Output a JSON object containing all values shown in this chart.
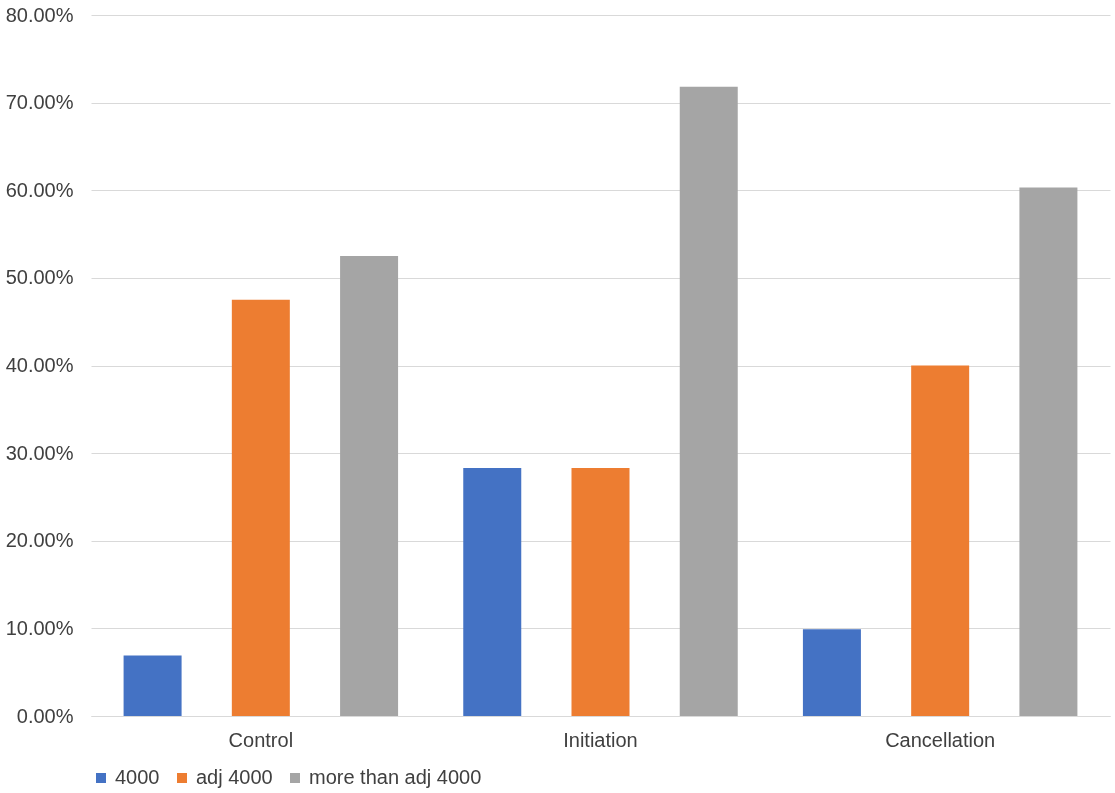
{
  "chart_data": {
    "type": "bar",
    "categories": [
      "Control",
      "Initiation",
      "Cancellation"
    ],
    "series": [
      {
        "name": "4000",
        "color": "#4472c4",
        "values": [
          6.9,
          28.3,
          9.9
        ]
      },
      {
        "name": "adj 4000",
        "color": "#ed7d31",
        "values": [
          47.5,
          28.3,
          40.0
        ]
      },
      {
        "name": "more than adj 4000",
        "color": "#a5a5a5",
        "values": [
          52.5,
          71.8,
          60.3
        ]
      }
    ],
    "ylim": [
      0,
      80
    ],
    "yticks": [
      {
        "value": 0,
        "label": "0.00%"
      },
      {
        "value": 10,
        "label": "10.00%"
      },
      {
        "value": 20,
        "label": "20.00%"
      },
      {
        "value": 30,
        "label": "30.00%"
      },
      {
        "value": 40,
        "label": "40.00%"
      },
      {
        "value": 50,
        "label": "50.00%"
      },
      {
        "value": 60,
        "label": "60.00%"
      },
      {
        "value": 70,
        "label": "70.00%"
      },
      {
        "value": 80,
        "label": "80.00%"
      }
    ],
    "grid": "y",
    "legend": "bottom"
  }
}
